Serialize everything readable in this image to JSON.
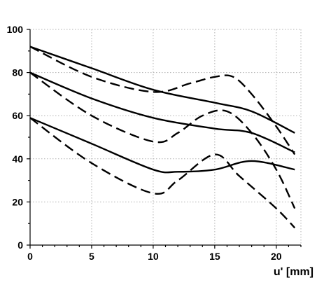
{
  "chart_data": {
    "type": "line",
    "title": "",
    "xlabel": "u' [mm]",
    "ylabel": "",
    "xlim": [
      0,
      22
    ],
    "ylim": [
      0,
      100
    ],
    "xticks": [
      "0",
      "5",
      "10",
      "15",
      "20"
    ],
    "yticks": [
      "0",
      "20",
      "40",
      "60",
      "80",
      "100"
    ],
    "grid": true,
    "legend": "none",
    "series": [
      {
        "style": "solid",
        "x": [
          0,
          5,
          10,
          15,
          18,
          21.5
        ],
        "y": [
          92,
          82,
          72,
          66,
          62,
          52
        ]
      },
      {
        "style": "dashed",
        "x": [
          0,
          5,
          10,
          13,
          15,
          16.5,
          18,
          20,
          21.5
        ],
        "y": [
          92,
          78,
          71,
          75,
          78,
          78,
          70,
          55,
          42
        ]
      },
      {
        "style": "solid",
        "x": [
          0,
          5,
          10,
          15,
          18,
          21.5
        ],
        "y": [
          80,
          68,
          59,
          54,
          52,
          43
        ]
      },
      {
        "style": "dashed",
        "x": [
          0,
          5,
          10,
          12,
          14,
          16,
          18,
          20,
          21.5
        ],
        "y": [
          80,
          60,
          48,
          52,
          60,
          62,
          52,
          35,
          17
        ]
      },
      {
        "style": "solid",
        "x": [
          0,
          5,
          10,
          12,
          15,
          18,
          21.5
        ],
        "y": [
          59,
          47,
          35,
          34,
          35,
          39,
          35
        ]
      },
      {
        "style": "dashed",
        "x": [
          0,
          5,
          10,
          12,
          15,
          17,
          20,
          21.5
        ],
        "y": [
          59,
          38,
          24,
          30,
          42,
          32,
          17,
          8
        ]
      }
    ]
  }
}
